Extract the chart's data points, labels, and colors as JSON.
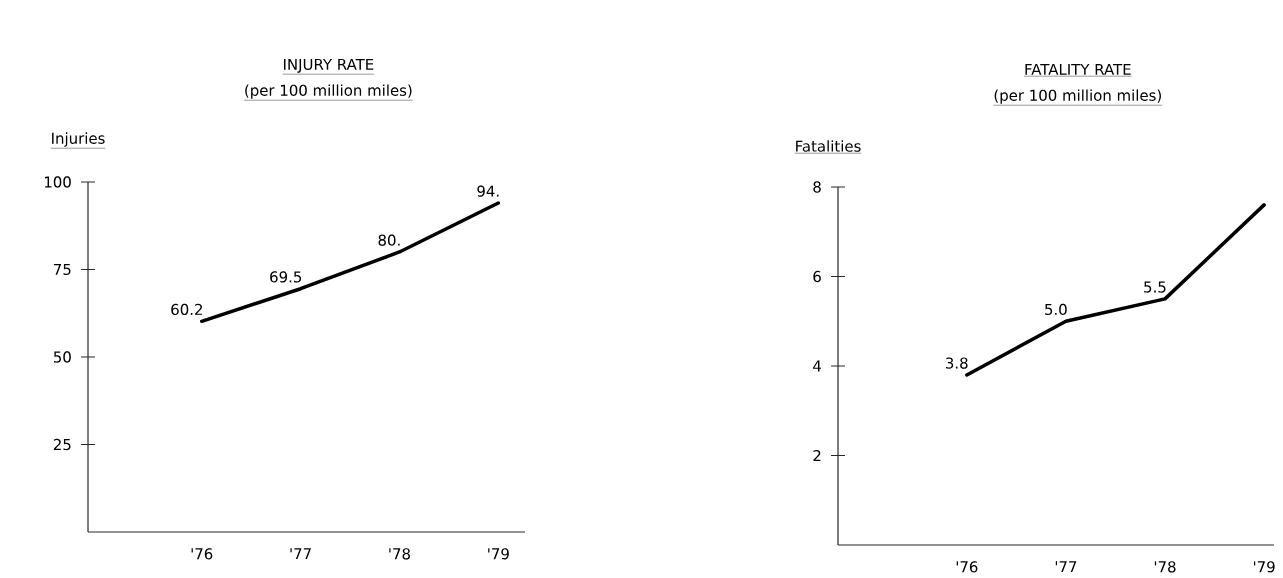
{
  "chart_data": [
    {
      "type": "line",
      "title": "INJURY RATE",
      "subtitle": "(per 100 million miles)",
      "ylabel": "Injuries",
      "categories": [
        "'76",
        "'77",
        "'78",
        "'79"
      ],
      "series": [
        {
          "color": "#000000",
          "values": [
            60.2,
            69.5,
            80,
            94
          ],
          "value_labels": [
            "60.2",
            "69.5",
            "80.",
            "94."
          ]
        }
      ],
      "ylim": [
        0,
        100
      ],
      "yticks": [
        25,
        50,
        75,
        100
      ],
      "marker": "none",
      "line_style": "solid"
    },
    {
      "type": "line",
      "title": "FATALITY RATE",
      "subtitle": "(per 100 million miles)",
      "ylabel": "Fatalities",
      "categories": [
        "'76",
        "'77",
        "'78",
        "'79"
      ],
      "series": [
        {
          "color": "#000000",
          "values": [
            3.8,
            5.0,
            5.5,
            7.6
          ],
          "value_labels": [
            "3.8",
            "5.0",
            "5.5",
            null
          ]
        }
      ],
      "ylim": [
        0,
        8
      ],
      "yticks": [
        2,
        4,
        6,
        8
      ],
      "marker": "none",
      "line_style": "solid"
    }
  ]
}
